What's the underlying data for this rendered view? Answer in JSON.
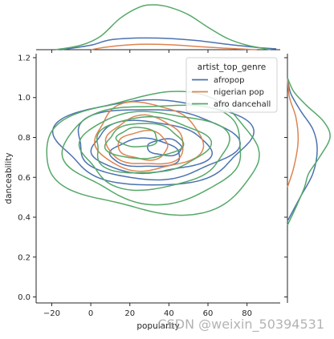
{
  "chart_data": {
    "type": "jointplot-kde",
    "xlabel": "popularity",
    "ylabel": "danceability",
    "xlim": [
      -28,
      97
    ],
    "ylim": [
      -0.03,
      1.22
    ],
    "xticks": [
      -20,
      0,
      20,
      40,
      60,
      80
    ],
    "xtick_labels": [
      "−20",
      "0",
      "20",
      "40",
      "60",
      "80"
    ],
    "yticks": [
      0.0,
      0.2,
      0.4,
      0.6,
      0.8,
      1.0,
      1.2
    ],
    "ytick_labels": [
      "0.0",
      "0.2",
      "0.4",
      "0.6",
      "0.8",
      "1.0",
      "1.2"
    ],
    "legend": {
      "title": "artist_top_genre",
      "position": "top-right",
      "entries": [
        "afropop",
        "nigerian pop",
        "afro dancehall"
      ]
    },
    "series": [
      {
        "name": "afropop",
        "color": "#4c72b0",
        "contours": [
          {
            "cx": 32,
            "cy": 0.78,
            "rx": 48,
            "ry": 0.22
          },
          {
            "cx": 32,
            "cy": 0.77,
            "rx": 40,
            "ry": 0.18
          },
          {
            "cx": 30,
            "cy": 0.75,
            "rx": 30,
            "ry": 0.13
          },
          {
            "cx": 28,
            "cy": 0.72,
            "rx": 18,
            "ry": 0.07
          },
          {
            "cx": 38,
            "cy": 0.75,
            "rx": 9,
            "ry": 0.04
          }
        ],
        "marginal_x": [
          [
            -15,
            0.0
          ],
          [
            0,
            0.1
          ],
          [
            10,
            0.22
          ],
          [
            25,
            0.26
          ],
          [
            40,
            0.25
          ],
          [
            55,
            0.2
          ],
          [
            70,
            0.12
          ],
          [
            85,
            0.05
          ],
          [
            95,
            0.02
          ]
        ],
        "marginal_y": [
          [
            0.38,
            0.0
          ],
          [
            0.5,
            0.3
          ],
          [
            0.62,
            0.6
          ],
          [
            0.74,
            0.7
          ],
          [
            0.84,
            0.6
          ],
          [
            0.93,
            0.32
          ],
          [
            1.02,
            0.08
          ],
          [
            1.1,
            0.0
          ]
        ]
      },
      {
        "name": "nigerian pop",
        "color": "#dd8452",
        "contours": [
          {
            "cx": 29,
            "cy": 0.8,
            "rx": 27,
            "ry": 0.17
          },
          {
            "cx": 28,
            "cy": 0.78,
            "rx": 20,
            "ry": 0.12
          },
          {
            "cx": 27,
            "cy": 0.76,
            "rx": 13,
            "ry": 0.07
          }
        ],
        "marginal_x": [
          [
            0,
            0.0
          ],
          [
            10,
            0.07
          ],
          [
            25,
            0.12
          ],
          [
            40,
            0.11
          ],
          [
            55,
            0.07
          ],
          [
            70,
            0.03
          ],
          [
            85,
            0.0
          ]
        ],
        "marginal_y": [
          [
            0.55,
            0.0
          ],
          [
            0.65,
            0.15
          ],
          [
            0.78,
            0.25
          ],
          [
            0.9,
            0.2
          ],
          [
            1.0,
            0.05
          ],
          [
            1.1,
            0.0
          ]
        ]
      },
      {
        "name": "afro dancehall",
        "color": "#55a868",
        "contours": [
          {
            "cx": 33,
            "cy": 0.72,
            "rx": 56,
            "ry": 0.29
          },
          {
            "cx": 33,
            "cy": 0.73,
            "rx": 47,
            "ry": 0.24
          },
          {
            "cx": 32,
            "cy": 0.74,
            "rx": 38,
            "ry": 0.19
          },
          {
            "cx": 30,
            "cy": 0.76,
            "rx": 29,
            "ry": 0.14
          },
          {
            "cx": 27,
            "cy": 0.78,
            "rx": 19,
            "ry": 0.09
          },
          {
            "cx": 24,
            "cy": 0.8,
            "rx": 10,
            "ry": 0.05
          }
        ],
        "marginal_x": [
          [
            -18,
            0.0
          ],
          [
            -5,
            0.1
          ],
          [
            5,
            0.3
          ],
          [
            15,
            0.7
          ],
          [
            25,
            0.95
          ],
          [
            32,
            1.0
          ],
          [
            40,
            0.95
          ],
          [
            50,
            0.78
          ],
          [
            60,
            0.5
          ],
          [
            70,
            0.25
          ],
          [
            80,
            0.1
          ],
          [
            92,
            0.0
          ]
        ],
        "marginal_y": [
          [
            0.36,
            0.0
          ],
          [
            0.45,
            0.2
          ],
          [
            0.55,
            0.4
          ],
          [
            0.62,
            0.5
          ],
          [
            0.7,
            0.75
          ],
          [
            0.8,
            1.0
          ],
          [
            0.88,
            0.85
          ],
          [
            0.96,
            0.45
          ],
          [
            1.03,
            0.15
          ],
          [
            1.1,
            0.0
          ]
        ]
      }
    ]
  },
  "watermark": "CSDN @weixin_50394531"
}
